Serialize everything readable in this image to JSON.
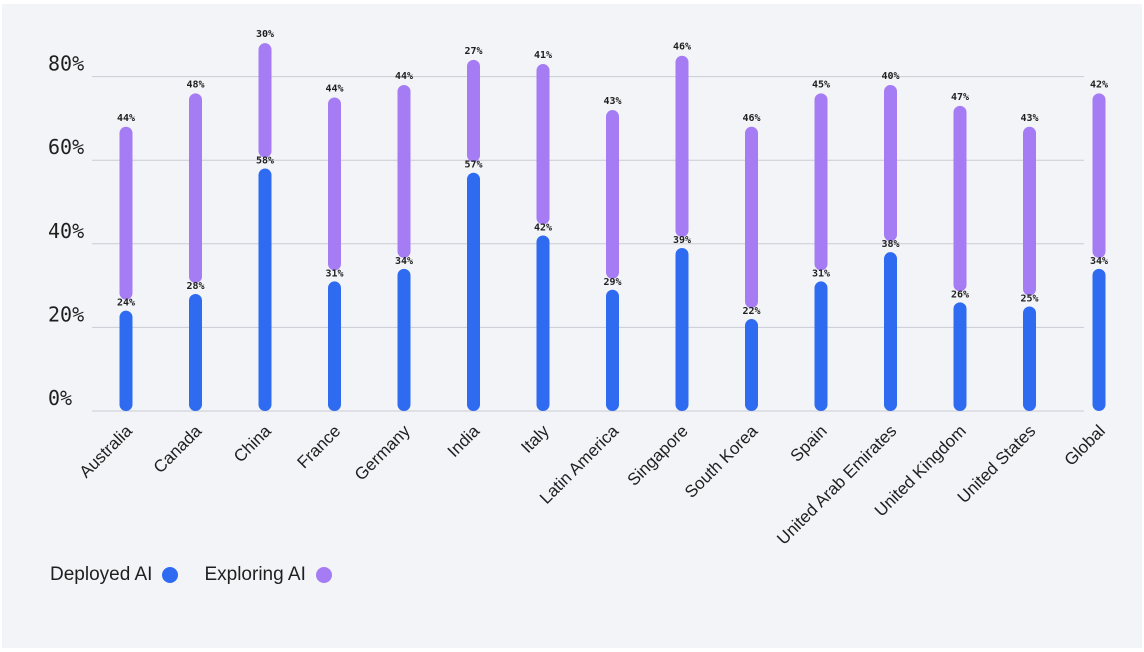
{
  "chart_data": {
    "type": "range-bar",
    "categories": [
      "Australia",
      "Canada",
      "China",
      "France",
      "Germany",
      "India",
      "Italy",
      "Latin America",
      "Singapore",
      "South Korea",
      "Spain",
      "United Arab Emirates",
      "United Kingdom",
      "United States",
      "Global"
    ],
    "series": [
      {
        "name": "Deployed AI",
        "color": "#2f6bf0",
        "values": [
          24,
          28,
          58,
          31,
          34,
          57,
          42,
          29,
          39,
          22,
          31,
          38,
          26,
          25,
          34
        ]
      },
      {
        "name": "Exploring AI",
        "color": "#a67cf5",
        "values": [
          44,
          48,
          30,
          44,
          44,
          27,
          41,
          43,
          46,
          46,
          45,
          40,
          47,
          43,
          42
        ]
      }
    ],
    "ytick_labels": [
      "0%",
      "20%",
      "40%",
      "60%",
      "80%"
    ],
    "ylim": [
      0,
      90
    ],
    "grid": true,
    "legend_position": "bottom-left"
  },
  "legend": {
    "deployed_label": "Deployed AI",
    "exploring_label": "Exploring AI"
  }
}
